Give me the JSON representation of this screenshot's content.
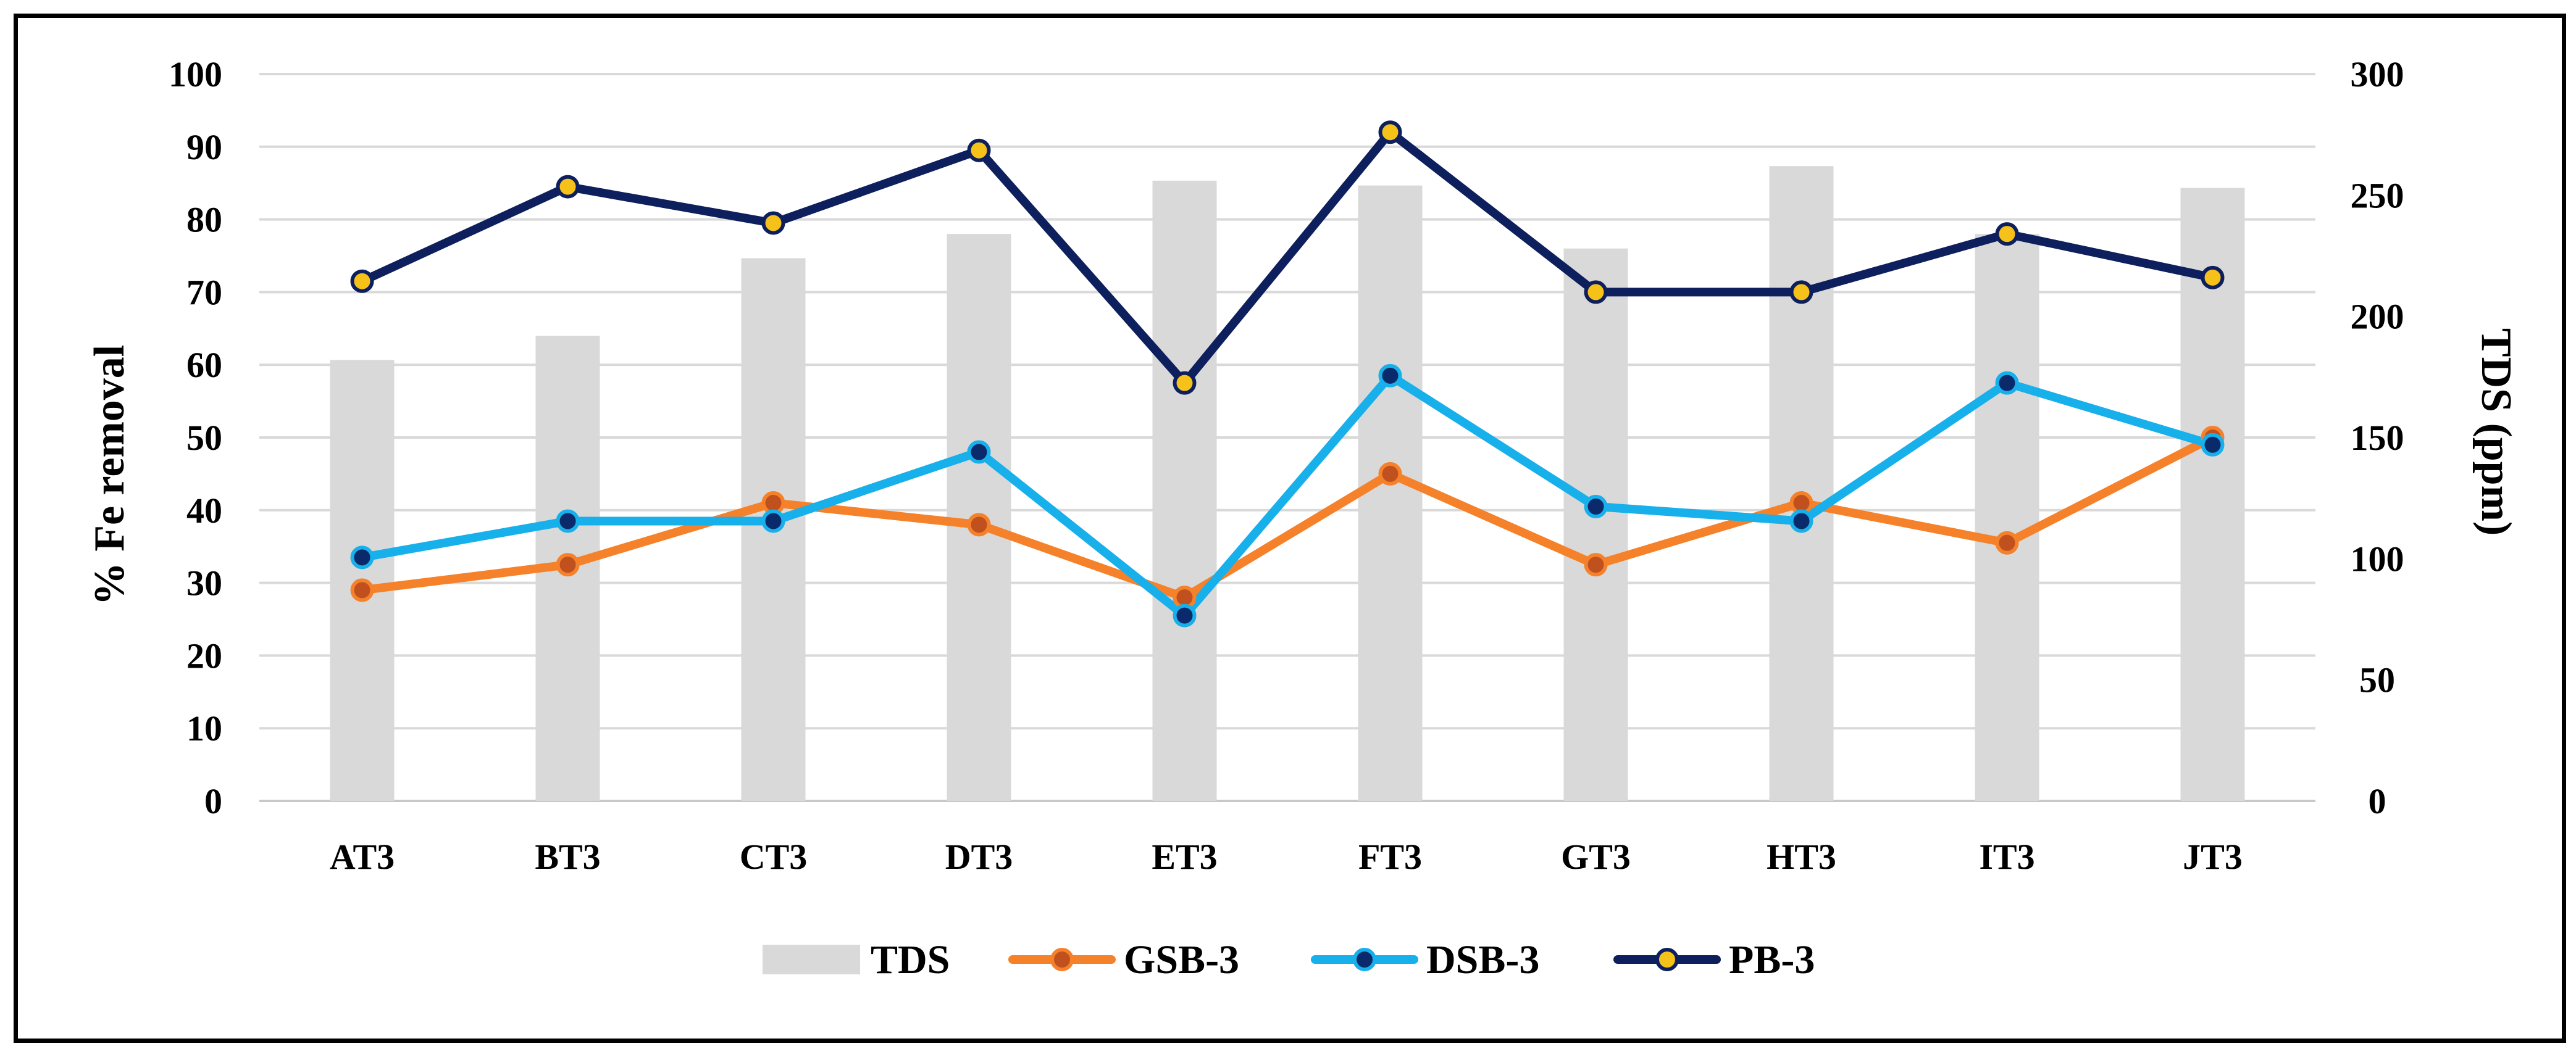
{
  "chart_data": {
    "type": "bar",
    "title": "",
    "ylabel": "% Fe removal",
    "y2label": "TDS (ppm)",
    "ylim": [
      0,
      100
    ],
    "y2lim": [
      0,
      300
    ],
    "yticks": [
      "0",
      "10",
      "20",
      "30",
      "40",
      "50",
      "60",
      "70",
      "80",
      "90",
      "100"
    ],
    "y2ticks": [
      "0",
      "50",
      "100",
      "150",
      "200",
      "250",
      "300"
    ],
    "grid": true,
    "legend_position": "bottom",
    "categories": [
      "AT3",
      "BT3",
      "CT3",
      "DT3",
      "ET3",
      "FT3",
      "GT3",
      "HT3",
      "IT3",
      "JT3"
    ],
    "series": [
      {
        "name": "TDS",
        "type": "bar",
        "axis": "right",
        "color": "#d9d9d9",
        "values": [
          182,
          192,
          224,
          234,
          256,
          254,
          228,
          262,
          234,
          253
        ]
      },
      {
        "name": "GSB-3",
        "type": "line",
        "axis": "left",
        "color": "#f5812a",
        "marker_fill": "#c0501e",
        "values": [
          29,
          32.5,
          41,
          38,
          28,
          45,
          32.5,
          41,
          35.5,
          50
        ]
      },
      {
        "name": "DSB-3",
        "type": "line",
        "axis": "left",
        "color": "#17b0ea",
        "marker_fill": "#0b2a6b",
        "values": [
          33.5,
          38.5,
          38.5,
          48,
          25.5,
          58.5,
          40.5,
          38.5,
          57.5,
          49
        ]
      },
      {
        "name": "PB-3",
        "type": "line",
        "axis": "left",
        "color": "#0d1f5c",
        "marker_fill": "#f6c21a",
        "values": [
          71.5,
          84.5,
          79.5,
          89.5,
          57.5,
          92,
          70,
          70,
          78,
          72
        ]
      }
    ]
  }
}
